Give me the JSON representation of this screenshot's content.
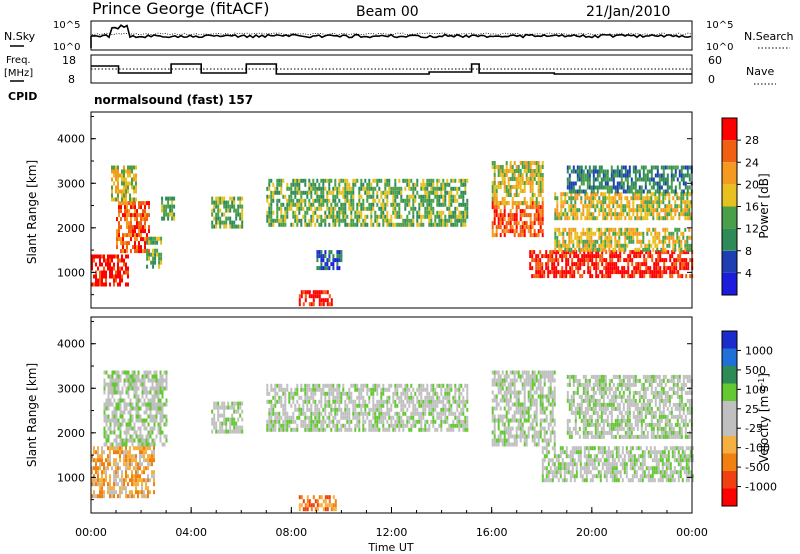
{
  "header": {
    "title": "Prince George (fitACF)",
    "beam": "Beam 00",
    "date": "21/Jan/2010"
  },
  "left_labels": {
    "nsky": "N.Sky",
    "freq_line1": "Freq.",
    "freq_line2": "[MHz]",
    "cpid": "CPID"
  },
  "right_labels": {
    "nsearch": "N.Search",
    "nave": "Nave"
  },
  "noise_axis": {
    "top": "10^5",
    "bottom": "10^0"
  },
  "freq_axis": {
    "left_top": "18",
    "left_bottom": "8",
    "right_top": "60",
    "right_bottom": "0"
  },
  "cpid_text": "normalsound (fast) 157",
  "colors": {
    "power": [
      "#1c1cdc",
      "#1e3fb4",
      "#2e8b57",
      "#4aa04a",
      "#e8c020",
      "#f49a20",
      "#f06010",
      "#ff0000"
    ],
    "velocity": [
      "#1c2ccc",
      "#2070d8",
      "#2e8b57",
      "#64c832",
      "#c0c0c0",
      "#c0c0c0",
      "#f4b040",
      "#f08010",
      "#f04010",
      "#ff0000"
    ]
  },
  "chart_data": [
    {
      "type": "heatmap",
      "name": "Power",
      "ylabel": "Slant Range [km]",
      "yticks": [
        1000,
        2000,
        3000,
        4000
      ],
      "ylim": [
        200,
        4600
      ],
      "xlim_hours": [
        0,
        24
      ],
      "colorbar_label": "Power [dB]",
      "colorbar_ticks": [
        "4",
        "8",
        "12",
        "16",
        "20",
        "24",
        "28"
      ],
      "bands": [
        {
          "t0": 0.0,
          "t1": 1.5,
          "r0": 700,
          "r1": 1400,
          "level": 7
        },
        {
          "t0": 1.0,
          "t1": 2.3,
          "r0": 1500,
          "r1": 2600,
          "level": 6
        },
        {
          "t0": 0.8,
          "t1": 1.8,
          "r0": 2600,
          "r1": 3400,
          "level": 4
        },
        {
          "t0": 2.2,
          "t1": 2.8,
          "r0": 1100,
          "r1": 1800,
          "level": 3
        },
        {
          "t0": 2.8,
          "t1": 3.3,
          "r0": 2200,
          "r1": 2700,
          "level": 3
        },
        {
          "t0": 4.8,
          "t1": 6.0,
          "r0": 2000,
          "r1": 2700,
          "level": 3
        },
        {
          "t0": 7.0,
          "t1": 15.0,
          "r0": 2100,
          "r1": 3100,
          "level": 3
        },
        {
          "t0": 8.3,
          "t1": 9.6,
          "r0": 300,
          "r1": 600,
          "level": 7
        },
        {
          "t0": 9.0,
          "t1": 10.0,
          "r0": 1100,
          "r1": 1500,
          "level": 1
        },
        {
          "t0": 16.0,
          "t1": 18.0,
          "r0": 1800,
          "r1": 2600,
          "level": 6
        },
        {
          "t0": 16.0,
          "t1": 18.0,
          "r0": 2600,
          "r1": 3500,
          "level": 4
        },
        {
          "t0": 17.5,
          "t1": 24.0,
          "r0": 900,
          "r1": 1500,
          "level": 7
        },
        {
          "t0": 18.5,
          "t1": 24.0,
          "r0": 1500,
          "r1": 2000,
          "level": 4
        },
        {
          "t0": 18.5,
          "t1": 24.0,
          "r0": 2200,
          "r1": 2800,
          "level": 4
        },
        {
          "t0": 19.0,
          "t1": 24.0,
          "r0": 2800,
          "r1": 3400,
          "level": 2
        }
      ]
    },
    {
      "type": "heatmap",
      "name": "Velocity",
      "ylabel": "Slant Range [km]",
      "yticks": [
        1000,
        2000,
        3000,
        4000
      ],
      "ylim": [
        200,
        4600
      ],
      "xlim_hours": [
        0,
        24
      ],
      "xticks": [
        "00:00",
        "04:00",
        "08:00",
        "12:00",
        "16:00",
        "20:00",
        "00:00"
      ],
      "xlabel": "Time UT",
      "colorbar_label": "Velocity [m s^-1]",
      "colorbar_ticks": [
        "1000",
        "500",
        "100",
        "25",
        "-25",
        "-100",
        "-500",
        "-1000"
      ],
      "bands": [
        {
          "t0": 0.0,
          "t1": 2.5,
          "r0": 600,
          "r1": 1700,
          "level": 6
        },
        {
          "t0": 0.5,
          "t1": 3.0,
          "r0": 1700,
          "r1": 3400,
          "level": 4
        },
        {
          "t0": 4.8,
          "t1": 6.0,
          "r0": 2000,
          "r1": 2700,
          "level": 4
        },
        {
          "t0": 7.0,
          "t1": 15.0,
          "r0": 2100,
          "r1": 3100,
          "level": 4
        },
        {
          "t0": 8.3,
          "t1": 9.8,
          "r0": 250,
          "r1": 600,
          "level": 7
        },
        {
          "t0": 16.0,
          "t1": 18.5,
          "r0": 1700,
          "r1": 3400,
          "level": 4
        },
        {
          "t0": 18.0,
          "t1": 24.0,
          "r0": 900,
          "r1": 1700,
          "level": 4
        },
        {
          "t0": 19.0,
          "t1": 24.0,
          "r0": 1900,
          "r1": 3300,
          "level": 4
        }
      ]
    }
  ]
}
